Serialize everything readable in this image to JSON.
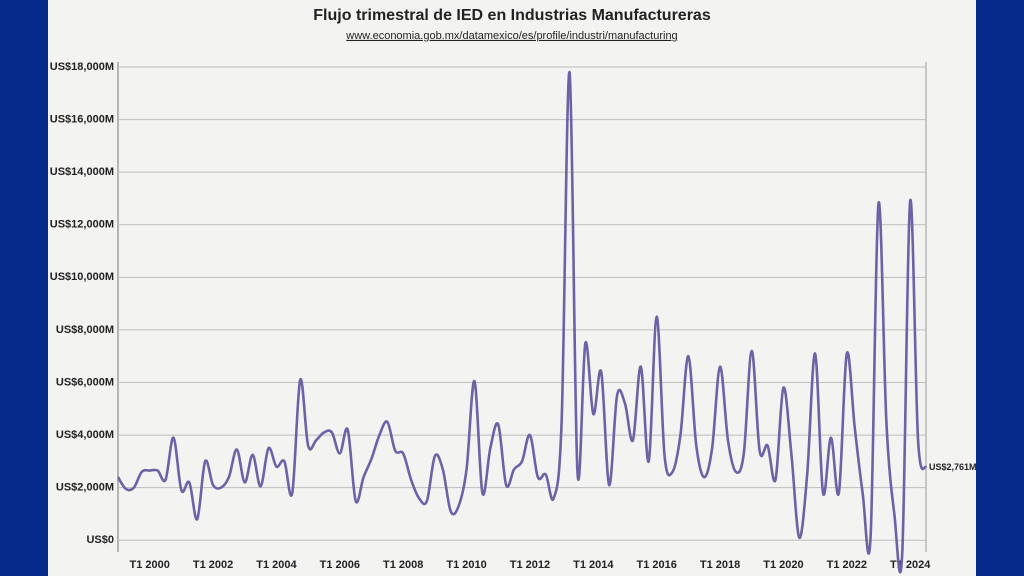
{
  "chart_data": {
    "type": "line",
    "title": "Flujo trimestral de IED en Industrias Manufactureras",
    "subtitle": "www.economia.gob.mx/datamexico/es/profile/industri/manufacturing",
    "categories": [
      null,
      null,
      null,
      null,
      "T1 2000",
      null,
      null,
      null,
      null,
      null,
      null,
      null,
      "T1 2002",
      null,
      null,
      null,
      null,
      null,
      null,
      null,
      "T1 2004",
      null,
      null,
      null,
      null,
      null,
      null,
      null,
      "T1 2006",
      null,
      null,
      null,
      null,
      null,
      null,
      null,
      "T1 2008",
      null,
      null,
      null,
      null,
      null,
      null,
      null,
      "T1 2010",
      null,
      null,
      null,
      null,
      null,
      null,
      null,
      "T1 2012",
      null,
      null,
      null,
      null,
      null,
      null,
      null,
      "T1 2014",
      null,
      null,
      null,
      null,
      null,
      null,
      null,
      "T1 2016",
      null,
      null,
      null,
      null,
      null,
      null,
      null,
      "T1 2018",
      null,
      null,
      null,
      null,
      null,
      null,
      null,
      "T1 2020",
      null,
      null,
      null,
      null,
      null,
      null,
      null,
      "T1 2022",
      null,
      null,
      null,
      null,
      null,
      null,
      null,
      "T1 2024",
      null,
      null
    ],
    "series": [
      {
        "color": "#6b63a6",
        "values": [
          2400,
          1950,
          2000,
          2600,
          2650,
          2650,
          2300,
          3900,
          1900,
          2200,
          800,
          3000,
          2100,
          2000,
          2400,
          3450,
          2200,
          3250,
          2050,
          3500,
          2800,
          3000,
          1800,
          6100,
          3600,
          3800,
          4100,
          4100,
          3300,
          4200,
          1500,
          2400,
          3100,
          4000,
          4500,
          3400,
          3300,
          2300,
          1600,
          1500,
          3200,
          2700,
          1100,
          1300,
          2700,
          6050,
          1800,
          3500,
          4400,
          2100,
          2700,
          3000,
          4000,
          2400,
          2500,
          1600,
          4500,
          17800,
          2600,
          7500,
          4800,
          6400,
          2100,
          5500,
          5200,
          3800,
          6600,
          3000,
          8500,
          3200,
          2600,
          4000,
          7000,
          3600,
          2400,
          3500,
          6600,
          3800,
          2600,
          3300,
          7200,
          3400,
          3600,
          2300,
          5800,
          3300,
          100,
          2500,
          7100,
          1800,
          3900,
          1800,
          7100,
          4300,
          1800,
          100,
          12800,
          4500,
          1000,
          -500,
          12900,
          3800,
          2761
        ],
        "value_labels": [
          null,
          null,
          null,
          null,
          null,
          null,
          null,
          null,
          null,
          null,
          null,
          null,
          null,
          null,
          null,
          null,
          null,
          null,
          null,
          null,
          null,
          null,
          null,
          null,
          null,
          null,
          null,
          null,
          null,
          null,
          null,
          null,
          null,
          null,
          null,
          null,
          null,
          null,
          null,
          null,
          null,
          null,
          null,
          null,
          null,
          null,
          null,
          null,
          null,
          null,
          null,
          null,
          null,
          null,
          null,
          null,
          null,
          null,
          null,
          null,
          null,
          null,
          null,
          null,
          null,
          null,
          null,
          null,
          null,
          null,
          null,
          null,
          null,
          null,
          null,
          null,
          null,
          null,
          null,
          null,
          null,
          null,
          null,
          null,
          null,
          null,
          null,
          null,
          null,
          null,
          null,
          null,
          null,
          null,
          null,
          null,
          null,
          null,
          null,
          null,
          null,
          null,
          "US$2,761M"
        ]
      }
    ],
    "ylim": [
      -600,
      18000
    ],
    "yticks": [
      {
        "value": 0,
        "label": "US$0"
      },
      {
        "value": 2000,
        "label": "US$2,000M"
      },
      {
        "value": 4000,
        "label": "US$4,000M"
      },
      {
        "value": 6000,
        "label": "US$6,000M"
      },
      {
        "value": 8000,
        "label": "US$8,000M"
      },
      {
        "value": 10000,
        "label": "US$10,000M"
      },
      {
        "value": 12000,
        "label": "US$12,000M"
      },
      {
        "value": 14000,
        "label": "US$14,000M"
      },
      {
        "value": 16000,
        "label": "US$16,000M"
      },
      {
        "value": 18000,
        "label": "US$18,000M"
      }
    ],
    "grid": true
  }
}
